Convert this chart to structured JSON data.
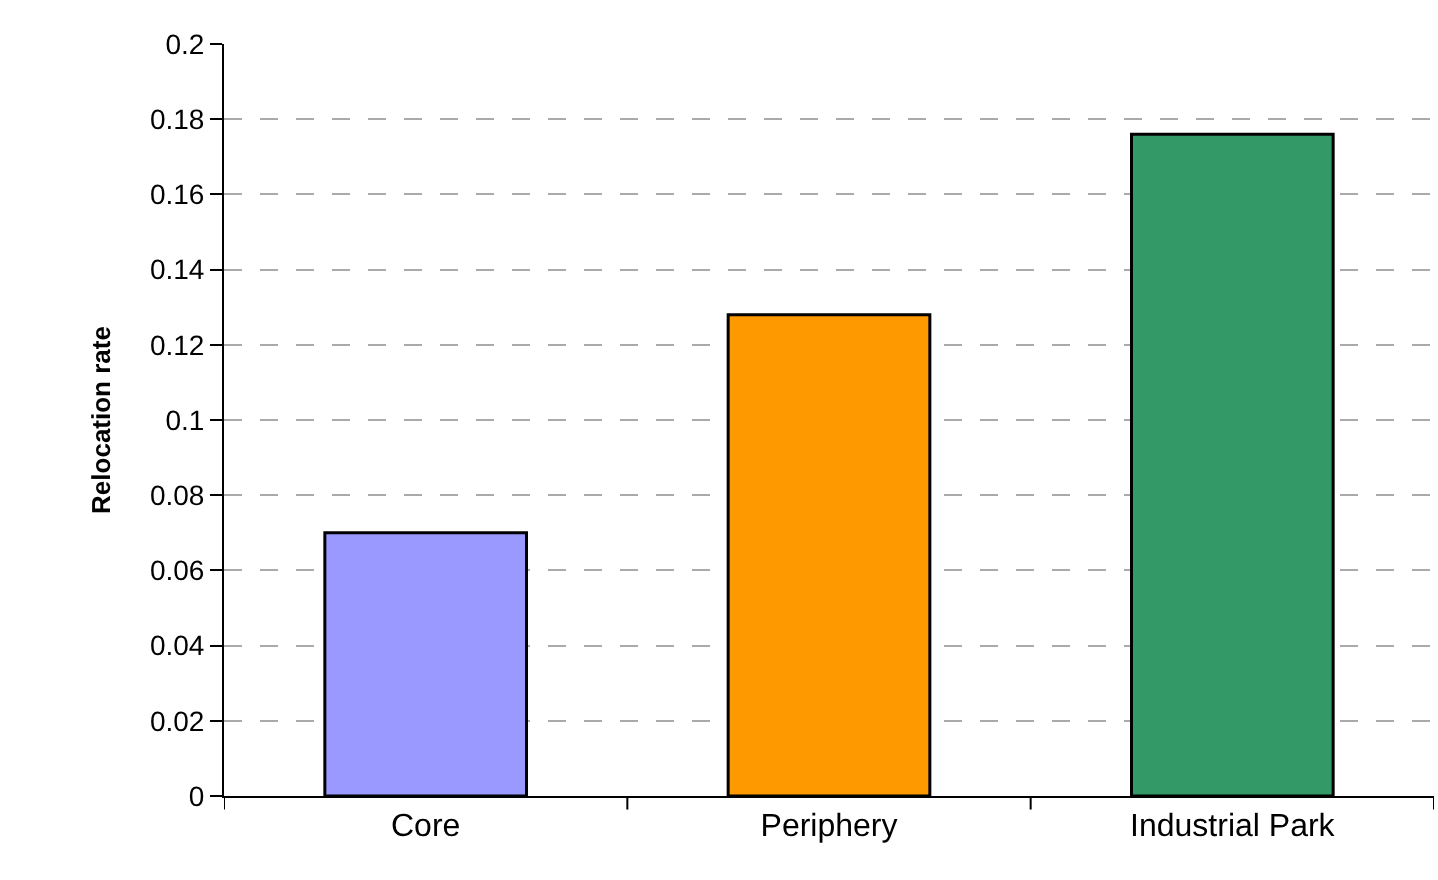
{
  "chart_data": {
    "type": "bar",
    "ylabel": "Relocation rate",
    "categories": [
      "Core",
      "Periphery",
      "Industrial Park"
    ],
    "values": [
      0.07,
      0.128,
      0.176
    ],
    "colors": [
      "#9999ff",
      "#ff9900",
      "#339966"
    ],
    "ylim": [
      0,
      0.2
    ],
    "yticks": [
      0,
      0.02,
      0.04,
      0.06,
      0.08,
      0.1,
      0.12,
      0.14,
      0.16,
      0.18,
      0.2
    ],
    "grid": "y"
  }
}
